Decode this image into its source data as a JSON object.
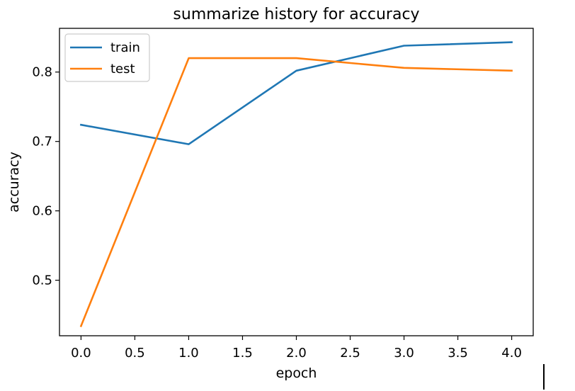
{
  "chart_data": {
    "type": "line",
    "title": "summarize history for accuracy",
    "xlabel": "epoch",
    "ylabel": "accuracy",
    "xlim": [
      -0.2,
      4.2
    ],
    "ylim": [
      0.42,
      0.863
    ],
    "xticks": [
      0.0,
      0.5,
      1.0,
      1.5,
      2.0,
      2.5,
      3.0,
      3.5,
      4.0
    ],
    "xtick_labels": [
      "0.0",
      "0.5",
      "1.0",
      "1.5",
      "2.0",
      "2.5",
      "3.0",
      "3.5",
      "4.0"
    ],
    "yticks": [
      0.5,
      0.6,
      0.7,
      0.8
    ],
    "ytick_labels": [
      "0.5",
      "0.6",
      "0.7",
      "0.8"
    ],
    "grid": false,
    "legend_position": "upper-left",
    "x": [
      0,
      1,
      2,
      3,
      4
    ],
    "series": [
      {
        "name": "train",
        "color": "#1f77b4",
        "values": [
          0.724,
          0.696,
          0.802,
          0.838,
          0.843
        ]
      },
      {
        "name": "test",
        "color": "#ff7f0e",
        "values": [
          0.434,
          0.82,
          0.82,
          0.806,
          0.802
        ]
      }
    ]
  }
}
